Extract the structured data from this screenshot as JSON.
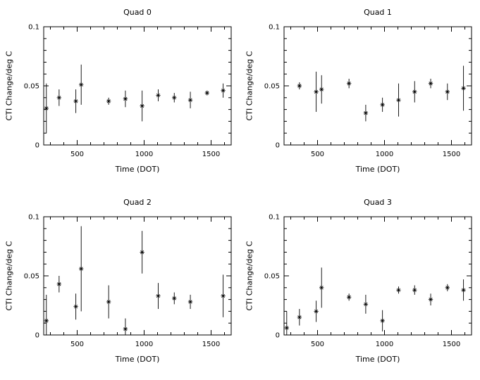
{
  "figure": {
    "background": "#ffffff",
    "axis_color": "#000000"
  },
  "chart_data": [
    {
      "type": "scatter",
      "title": "Quad 0",
      "xlabel": "Time (DOT)",
      "ylabel": "CTI Change/deg C",
      "xlim": [
        250,
        1650
      ],
      "ylim": [
        0,
        0.1
      ],
      "xticks": [
        500,
        1000,
        1500
      ],
      "xtick_labels": [
        "500",
        "1000",
        "1500"
      ],
      "yticks": [
        0,
        0.05,
        0.1
      ],
      "ytick_labels": [
        "0",
        "0.05",
        "0.1"
      ],
      "xminor_step": 100,
      "yminor_step": 0.01,
      "grid": false,
      "legend": false,
      "marker": "asterisk",
      "error_bars": "vertical",
      "points": [
        {
          "x": 270,
          "y": 0.031,
          "err": 0.021
        },
        {
          "x": 365,
          "y": 0.04,
          "err": 0.007
        },
        {
          "x": 490,
          "y": 0.037,
          "err": 0.01
        },
        {
          "x": 530,
          "y": 0.051,
          "err": 0.017
        },
        {
          "x": 735,
          "y": 0.037,
          "err": 0.003
        },
        {
          "x": 860,
          "y": 0.039,
          "err": 0.007
        },
        {
          "x": 985,
          "y": 0.033,
          "err": 0.013
        },
        {
          "x": 1105,
          "y": 0.042,
          "err": 0.005
        },
        {
          "x": 1225,
          "y": 0.04,
          "err": 0.004
        },
        {
          "x": 1345,
          "y": 0.038,
          "err": 0.007
        },
        {
          "x": 1470,
          "y": 0.044,
          "err": 0.002
        },
        {
          "x": 1590,
          "y": 0.046,
          "err": 0.006
        }
      ]
    },
    {
      "type": "scatter",
      "title": "Quad 1",
      "xlabel": "Time (DOT)",
      "ylabel": "CTI Change/deg C",
      "xlim": [
        250,
        1650
      ],
      "ylim": [
        0,
        0.1
      ],
      "xticks": [
        500,
        1000,
        1500
      ],
      "xtick_labels": [
        "500",
        "1000",
        "1500"
      ],
      "yticks": [
        0,
        0.05,
        0.1
      ],
      "ytick_labels": [
        "0",
        "0.05",
        "0.1"
      ],
      "xminor_step": 100,
      "yminor_step": 0.01,
      "grid": false,
      "legend": false,
      "marker": "asterisk",
      "error_bars": "vertical",
      "points": [
        {
          "x": 365,
          "y": 0.05,
          "err": 0.003
        },
        {
          "x": 490,
          "y": 0.045,
          "err": 0.017
        },
        {
          "x": 530,
          "y": 0.047,
          "err": 0.012
        },
        {
          "x": 735,
          "y": 0.052,
          "err": 0.004
        },
        {
          "x": 860,
          "y": 0.027,
          "err": 0.007
        },
        {
          "x": 985,
          "y": 0.034,
          "err": 0.006
        },
        {
          "x": 1105,
          "y": 0.038,
          "err": 0.014
        },
        {
          "x": 1225,
          "y": 0.045,
          "err": 0.009
        },
        {
          "x": 1345,
          "y": 0.052,
          "err": 0.004
        },
        {
          "x": 1470,
          "y": 0.045,
          "err": 0.007
        },
        {
          "x": 1590,
          "y": 0.048,
          "err": 0.019
        }
      ]
    },
    {
      "type": "scatter",
      "title": "Quad 2",
      "xlabel": "Time (DOT)",
      "ylabel": "CTI Change/deg C",
      "xlim": [
        250,
        1650
      ],
      "ylim": [
        0,
        0.1
      ],
      "xticks": [
        500,
        1000,
        1500
      ],
      "xtick_labels": [
        "500",
        "1000",
        "1500"
      ],
      "yticks": [
        0,
        0.05,
        0.1
      ],
      "ytick_labels": [
        "0",
        "0.05",
        "0.1"
      ],
      "xminor_step": 100,
      "yminor_step": 0.01,
      "grid": false,
      "legend": false,
      "marker": "asterisk",
      "error_bars": "vertical",
      "points": [
        {
          "x": 270,
          "y": 0.012,
          "err": 0.022
        },
        {
          "x": 365,
          "y": 0.043,
          "err": 0.007
        },
        {
          "x": 490,
          "y": 0.024,
          "err": 0.011
        },
        {
          "x": 530,
          "y": 0.056,
          "err": 0.036
        },
        {
          "x": 735,
          "y": 0.028,
          "err": 0.014
        },
        {
          "x": 860,
          "y": 0.005,
          "err": 0.009
        },
        {
          "x": 985,
          "y": 0.07,
          "err": 0.018
        },
        {
          "x": 1105,
          "y": 0.033,
          "err": 0.011
        },
        {
          "x": 1225,
          "y": 0.031,
          "err": 0.005
        },
        {
          "x": 1345,
          "y": 0.028,
          "err": 0.006
        },
        {
          "x": 1590,
          "y": 0.033,
          "err": 0.018
        }
      ]
    },
    {
      "type": "scatter",
      "title": "Quad 3",
      "xlabel": "Time (DOT)",
      "ylabel": "CTI Change/deg C",
      "xlim": [
        250,
        1650
      ],
      "ylim": [
        0,
        0.1
      ],
      "xticks": [
        500,
        1000,
        1500
      ],
      "xtick_labels": [
        "500",
        "1000",
        "1500"
      ],
      "yticks": [
        0,
        0.05,
        0.1
      ],
      "ytick_labels": [
        "0",
        "0.05",
        "0.1"
      ],
      "xminor_step": 100,
      "yminor_step": 0.01,
      "grid": false,
      "legend": false,
      "marker": "asterisk",
      "error_bars": "vertical",
      "points": [
        {
          "x": 270,
          "y": 0.006,
          "err": 0.014
        },
        {
          "x": 365,
          "y": 0.015,
          "err": 0.007
        },
        {
          "x": 490,
          "y": 0.02,
          "err": 0.009
        },
        {
          "x": 530,
          "y": 0.04,
          "err": 0.017
        },
        {
          "x": 735,
          "y": 0.032,
          "err": 0.003
        },
        {
          "x": 860,
          "y": 0.026,
          "err": 0.008
        },
        {
          "x": 985,
          "y": 0.012,
          "err": 0.009
        },
        {
          "x": 1105,
          "y": 0.038,
          "err": 0.003
        },
        {
          "x": 1225,
          "y": 0.038,
          "err": 0.004
        },
        {
          "x": 1345,
          "y": 0.03,
          "err": 0.005
        },
        {
          "x": 1470,
          "y": 0.04,
          "err": 0.003
        },
        {
          "x": 1590,
          "y": 0.038,
          "err": 0.009
        }
      ]
    }
  ]
}
